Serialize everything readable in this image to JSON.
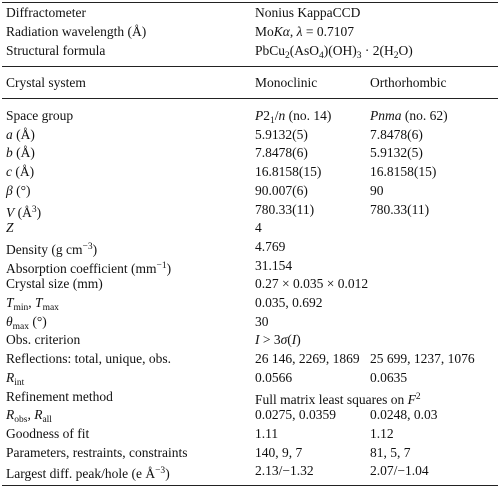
{
  "table": {
    "meta": [
      [
        "Diffractometer",
        "Nonius KappaCCD"
      ],
      [
        "Radiation wavelength (Å)",
        [
          "Mo",
          {
            "text": "K",
            "style": "italic"
          },
          {
            "text": "α",
            "style": "italic"
          },
          ", ",
          {
            "text": "λ",
            "style": "italic"
          },
          " = 0.7107"
        ]
      ],
      [
        "Structural formula",
        [
          "PbCu",
          {
            "text": "2",
            "style": "sub"
          },
          "(AsO",
          {
            "text": "4",
            "style": "sub"
          },
          ")(OH)",
          {
            "text": "3",
            "style": "sub"
          },
          " · 2(H",
          {
            "text": "2",
            "style": "sub"
          },
          "O)"
        ]
      ]
    ],
    "header": [
      "Crystal system",
      "Monoclinic",
      "Orthorhombic"
    ],
    "rows": [
      [
        "Space group",
        [
          {
            "text": "P",
            "style": "italic"
          },
          "2",
          {
            "text": "1",
            "style": "sub"
          },
          "/",
          {
            "text": "n",
            "style": "italic"
          },
          " (no. 14)"
        ],
        [
          {
            "text": "Pnma",
            "style": "italic"
          },
          " (no. 62)"
        ]
      ],
      [
        [
          {
            "text": "a",
            "style": "italic"
          },
          " (Å)"
        ],
        "5.9132(5)",
        "7.8478(6)"
      ],
      [
        [
          {
            "text": "b",
            "style": "italic"
          },
          " (Å)"
        ],
        "7.8478(6)",
        "5.9132(5)"
      ],
      [
        [
          {
            "text": "c",
            "style": "italic"
          },
          " (Å)"
        ],
        "16.8158(15)",
        "16.8158(15)"
      ],
      [
        [
          {
            "text": "β",
            "style": "italic"
          },
          " (°)"
        ],
        "90.007(6)",
        "90"
      ],
      [
        [
          {
            "text": "V",
            "style": "italic"
          },
          " (Å",
          {
            "text": "3",
            "style": "sup"
          },
          ")"
        ],
        "780.33(11)",
        "780.33(11)"
      ],
      [
        [
          {
            "text": "Z",
            "style": "italic"
          }
        ],
        "4",
        null
      ],
      [
        [
          "Density (g cm",
          {
            "text": "−3",
            "style": "sup"
          },
          ")"
        ],
        "4.769",
        null
      ],
      [
        [
          "Absorption coefficient (mm",
          {
            "text": "−1",
            "style": "sup"
          },
          ")"
        ],
        "31.154",
        null
      ],
      [
        "Crystal size (mm)",
        "0.27 × 0.035 × 0.012",
        null
      ],
      [
        [
          {
            "text": "T",
            "style": "italic"
          },
          {
            "text": "min",
            "style": "sub"
          },
          ", ",
          {
            "text": "T",
            "style": "italic"
          },
          {
            "text": "max",
            "style": "sub"
          }
        ],
        "0.035, 0.692",
        null
      ],
      [
        [
          {
            "text": "θ",
            "style": "italic"
          },
          {
            "text": "max",
            "style": "sub"
          },
          " (°)"
        ],
        "30",
        null
      ],
      [
        "Obs. criterion",
        [
          {
            "text": "I",
            "style": "italic"
          },
          " > 3",
          {
            "text": "σ",
            "style": "italic"
          },
          "(",
          {
            "text": "I",
            "style": "italic"
          },
          ")"
        ],
        null
      ],
      [
        "Reflections: total, unique, obs.",
        "26 146, 2269, 1869",
        "25 699, 1237, 1076"
      ],
      [
        [
          {
            "text": "R",
            "style": "italic"
          },
          {
            "text": "int",
            "style": "sub"
          }
        ],
        "0.0566",
        "0.0635"
      ],
      [
        "Refinement method",
        [
          "Full matrix least squares on ",
          {
            "text": "F",
            "style": "italic"
          },
          {
            "text": "2",
            "style": "sup"
          }
        ],
        null
      ],
      [
        [
          {
            "text": "R",
            "style": "italic"
          },
          {
            "text": "obs",
            "style": "sub"
          },
          ", ",
          {
            "text": "R",
            "style": "italic"
          },
          {
            "text": "all",
            "style": "sub"
          }
        ],
        "0.0275, 0.0359",
        "0.0248, 0.03"
      ],
      [
        "Goodness of fit",
        "1.11",
        "1.12"
      ],
      [
        "Parameters, restraints, constraints",
        "140, 9, 7",
        "81, 5, 7"
      ],
      [
        [
          "Largest diff. peak/hole (e Å",
          {
            "text": "−3",
            "style": "sup"
          },
          ")"
        ],
        "2.13/−1.32",
        "2.07/−1.04"
      ]
    ]
  }
}
